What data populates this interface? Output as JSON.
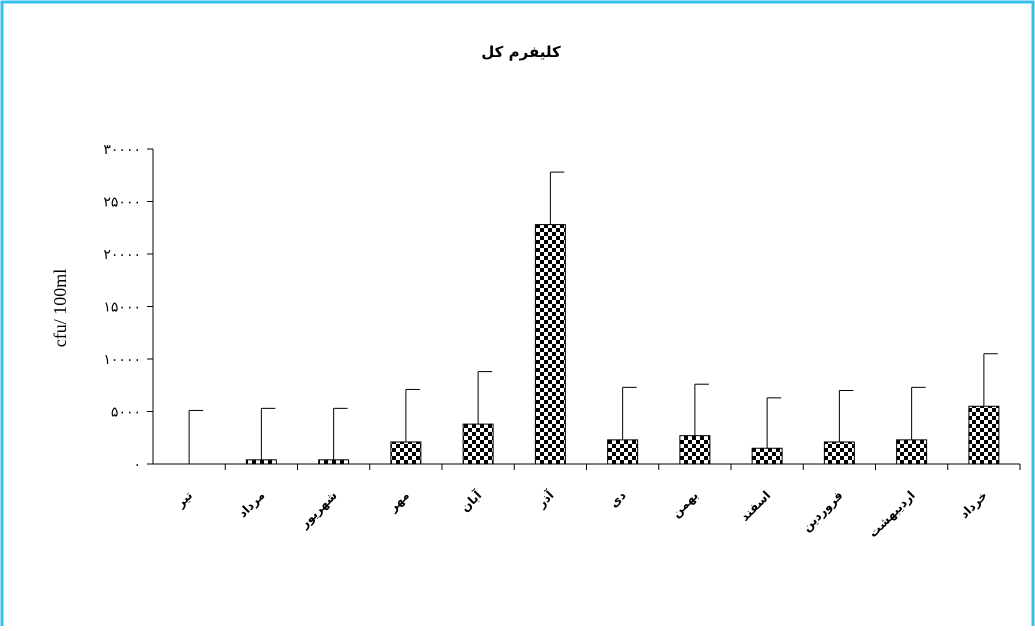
{
  "chart_data": {
    "type": "bar",
    "title": "کلیفرم کل",
    "xlabel": "",
    "ylabel": "cfu/ 100ml",
    "ylim": [
      0,
      30000
    ],
    "yticks": [
      0,
      5000,
      10000,
      15000,
      20000,
      25000,
      30000
    ],
    "ytick_labels": [
      "۰",
      "۵۰۰۰",
      "۱۰۰۰۰",
      "۱۵۰۰۰",
      "۲۰۰۰۰",
      "۲۵۰۰۰",
      "۳۰۰۰۰"
    ],
    "categories": [
      "تیر",
      "مرداد",
      "شهریور",
      "مهر",
      "آبان",
      "آذر",
      "دی",
      "بهمن",
      "اسفند",
      "فروردین",
      "اردیبهشت",
      "خرداد"
    ],
    "values": [
      0,
      400,
      400,
      2100,
      3800,
      22800,
      2300,
      2700,
      1500,
      2100,
      2300,
      5500
    ],
    "error_upper": [
      5100,
      5300,
      5300,
      7100,
      8800,
      27800,
      7300,
      7600,
      6300,
      7000,
      7300,
      10500
    ],
    "legend": "none",
    "grid": false,
    "colors": {
      "frame": "#33c0ef",
      "bar_dark": "#000000",
      "bar_light": "#ffffff"
    }
  }
}
